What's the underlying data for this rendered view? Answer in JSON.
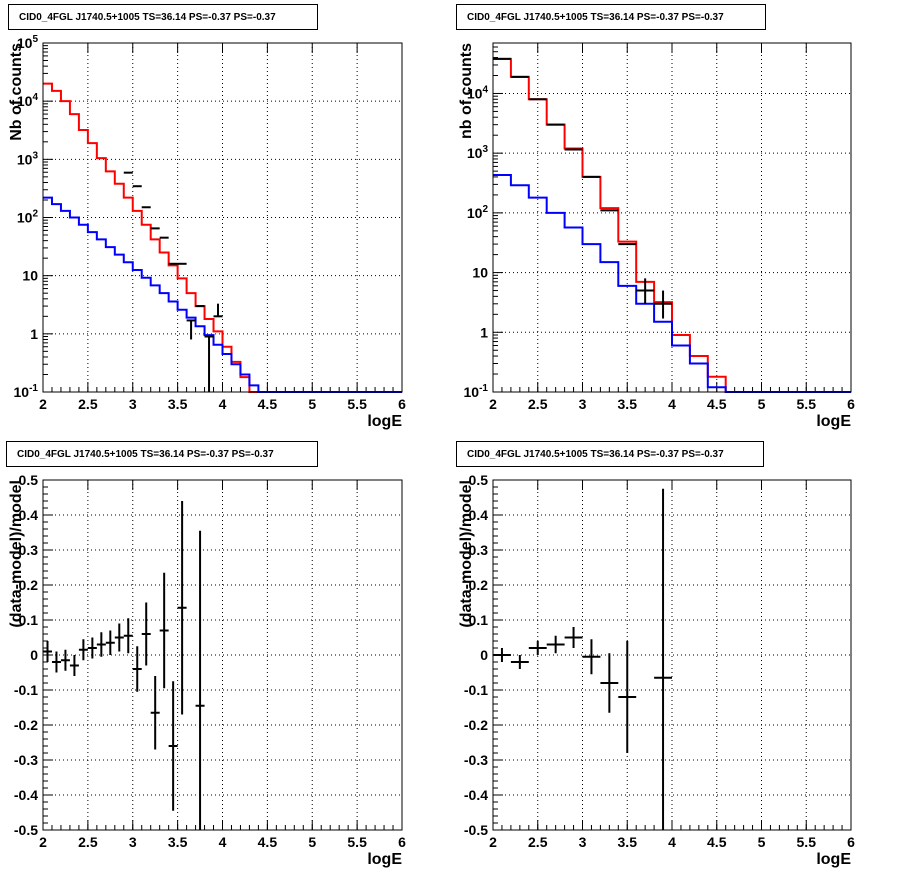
{
  "panels": [
    {
      "title": "CID0_4FGL J1740.5+1005 TS=36.14 PS=-0.37 PS=-0.37",
      "xlabel": "logE",
      "ylabel": "Nb of counts"
    },
    {
      "title": "CID0_4FGL J1740.5+1005 TS=36.14 PS=-0.37 PS=-0.37",
      "xlabel": "logE",
      "ylabel": "nb of counts"
    },
    {
      "title": "CID0_4FGL J1740.5+1005 TS=36.14 PS=-0.37 PS=-0.37",
      "xlabel": "logE",
      "ylabel": "(data-model)/model"
    },
    {
      "title": "CID0_4FGL J1740.5+1005 TS=36.14 PS=-0.37 PS=-0.37",
      "xlabel": "logE",
      "ylabel": "(data-model)/model"
    }
  ],
  "colors": {
    "total_model": "#ff0000",
    "source_model": "#0000ff",
    "data": "#000000",
    "grid": "#000000"
  },
  "chart_data": [
    {
      "type": "histogram",
      "log_y": true,
      "xlim": [
        2,
        6
      ],
      "ylim": [
        0.1,
        100000
      ],
      "xticks": [
        2,
        2.5,
        3,
        3.5,
        4,
        4.5,
        5,
        5.5,
        6
      ],
      "xtick_labels": [
        "2",
        "2.5",
        "3",
        "3.5",
        "4",
        "4.5",
        "5",
        "5.5",
        "6"
      ],
      "yticks": [
        0.1,
        1,
        10,
        100,
        1000,
        10000,
        100000
      ],
      "ytick_labels": [
        "10^-1",
        "1",
        "10",
        "10^2",
        "10^3",
        "10^4",
        "10^5"
      ],
      "grid": true,
      "bin_edges": [
        2.0,
        2.1,
        2.2,
        2.3,
        2.4,
        2.5,
        2.6,
        2.7,
        2.8,
        2.9,
        3.0,
        3.1,
        3.2,
        3.3,
        3.4,
        3.5,
        3.6,
        3.7,
        3.8,
        3.9,
        4.0,
        4.1,
        4.2,
        4.3,
        4.4,
        4.5,
        4.6,
        4.7,
        4.8,
        4.9,
        5.0,
        5.1,
        5.2,
        5.3,
        5.4,
        5.5,
        5.6,
        5.7,
        5.8,
        5.9,
        6.0
      ],
      "series": [
        {
          "role": "total_model",
          "color": "#ff0000",
          "values": [
            20000,
            15000,
            10000,
            6000,
            3200,
            1900,
            1050,
            620,
            380,
            220,
            130,
            75,
            42,
            25,
            15,
            9,
            5,
            3,
            1.8,
            1.1,
            0.6,
            0.33,
            0.18,
            0.1,
            0.1,
            0.1,
            0.1,
            0.1,
            0.1,
            0.1,
            0.1,
            0.1,
            0.1,
            0.1,
            0.1,
            0.1,
            0.1,
            0.1,
            0.1,
            0.1
          ]
        },
        {
          "role": "source_model",
          "color": "#0000ff",
          "values": [
            220,
            170,
            130,
            100,
            75,
            56,
            42,
            31,
            23,
            17,
            12.5,
            9.2,
            6.8,
            5,
            3.6,
            2.6,
            1.9,
            1.35,
            0.95,
            0.65,
            0.45,
            0.3,
            0.2,
            0.13,
            0.1,
            0.1,
            0.1,
            0.1,
            0.1,
            0.1,
            0.1,
            0.1,
            0.1,
            0.1,
            0.1,
            0.1,
            0.1,
            0.1,
            0.1,
            0.1
          ]
        }
      ],
      "data_points": {
        "x": [
          2.95,
          3.05,
          3.15,
          3.25,
          3.35,
          3.45,
          3.55,
          3.65,
          3.75,
          3.85,
          3.95
        ],
        "y": [
          590,
          345,
          150,
          65,
          45,
          16,
          16,
          1.7,
          3,
          0.9,
          2
        ],
        "yerr_low": [
          0,
          0,
          0,
          0,
          0,
          0,
          0,
          0.9,
          0,
          0.8,
          0
        ],
        "yerr_high": [
          0,
          0,
          0,
          0,
          0,
          0,
          0,
          0,
          0,
          0,
          1.3
        ]
      }
    },
    {
      "type": "histogram",
      "log_y": true,
      "xlim": [
        2,
        6
      ],
      "ylim": [
        0.1,
        70000
      ],
      "xticks": [
        2,
        2.5,
        3,
        3.5,
        4,
        4.5,
        5,
        5.5,
        6
      ],
      "xtick_labels": [
        "2",
        "2.5",
        "3",
        "3.5",
        "4",
        "4.5",
        "5",
        "5.5",
        "6"
      ],
      "yticks": [
        0.1,
        1,
        10,
        100,
        1000,
        10000
      ],
      "ytick_labels": [
        "10^-1",
        "1",
        "10",
        "10^2",
        "10^3",
        "10^4"
      ],
      "grid": true,
      "bin_edges": [
        2.0,
        2.2,
        2.4,
        2.6,
        2.8,
        3.0,
        3.2,
        3.4,
        3.6,
        3.8,
        4.0,
        4.2,
        4.4,
        4.6,
        4.8,
        5.0,
        5.2,
        5.4,
        5.6,
        5.8,
        6.0
      ],
      "series": [
        {
          "role": "total_model",
          "color": "#ff0000",
          "values": [
            38000,
            19000,
            8000,
            3000,
            1200,
            400,
            120,
            33,
            7,
            3.2,
            0.9,
            0.4,
            0.18,
            0.1,
            0.1,
            0.1,
            0.1,
            0.1,
            0.1,
            0.1
          ]
        },
        {
          "role": "source_model",
          "color": "#0000ff",
          "values": [
            430,
            290,
            180,
            100,
            57,
            30,
            15,
            6,
            3,
            1.5,
            0.6,
            0.3,
            0.12,
            0.1,
            0.1,
            0.1,
            0.1,
            0.1,
            0.1,
            0.1
          ]
        }
      ],
      "data_points": {
        "x": [
          2.1,
          2.3,
          2.5,
          2.7,
          2.9,
          3.1,
          3.3,
          3.5,
          3.7,
          3.9
        ],
        "y": [
          38000,
          19000,
          8000,
          3000,
          1150,
          400,
          110,
          30,
          5,
          3
        ],
        "yerr_low": [
          0,
          0,
          0,
          0,
          0,
          0,
          0,
          0,
          2,
          1.3
        ],
        "yerr_high": [
          0,
          0,
          0,
          0,
          0,
          0,
          0,
          0,
          3,
          2
        ]
      }
    },
    {
      "type": "scatter",
      "log_y": false,
      "xlim": [
        2,
        6
      ],
      "ylim": [
        -0.5,
        0.5
      ],
      "xticks": [
        2,
        2.5,
        3,
        3.5,
        4,
        4.5,
        5,
        5.5,
        6
      ],
      "xtick_labels": [
        "2",
        "2.5",
        "3",
        "3.5",
        "4",
        "4.5",
        "5",
        "5.5",
        "6"
      ],
      "yticks": [
        -0.5,
        -0.4,
        -0.3,
        -0.2,
        -0.1,
        0,
        0.1,
        0.2,
        0.3,
        0.4,
        0.5
      ],
      "ytick_labels": [
        "-0.5",
        "-0.4",
        "-0.3",
        "-0.2",
        "-0.1",
        "0",
        "0.1",
        "0.2",
        "0.3",
        "0.4",
        "0.5"
      ],
      "grid": true,
      "x_halfwidth": 0.05,
      "points": {
        "x": [
          2.05,
          2.15,
          2.25,
          2.35,
          2.45,
          2.55,
          2.65,
          2.75,
          2.85,
          2.95,
          3.05,
          3.15,
          3.25,
          3.35,
          3.45,
          3.55,
          3.75
        ],
        "y": [
          0.01,
          -0.02,
          -0.015,
          -0.03,
          0.015,
          0.02,
          0.03,
          0.035,
          0.05,
          0.055,
          -0.04,
          0.06,
          -0.165,
          0.07,
          -0.26,
          0.135,
          -0.145
        ],
        "yerr": [
          0.03,
          0.03,
          0.03,
          0.03,
          0.03,
          0.03,
          0.035,
          0.035,
          0.04,
          0.05,
          0.065,
          0.09,
          0.105,
          0.165,
          0.185,
          0.305,
          0.5
        ]
      }
    },
    {
      "type": "scatter",
      "log_y": false,
      "xlim": [
        2,
        6
      ],
      "ylim": [
        -0.5,
        0.5
      ],
      "xticks": [
        2,
        2.5,
        3,
        3.5,
        4,
        4.5,
        5,
        5.5,
        6
      ],
      "xtick_labels": [
        "2",
        "2.5",
        "3",
        "3.5",
        "4",
        "4.5",
        "5",
        "5.5",
        "6"
      ],
      "yticks": [
        -0.5,
        -0.4,
        -0.3,
        -0.2,
        -0.1,
        0,
        0.1,
        0.2,
        0.3,
        0.4,
        0.5
      ],
      "ytick_labels": [
        "-0.5",
        "-0.4",
        "-0.3",
        "-0.2",
        "-0.1",
        "0",
        "0.1",
        "0.2",
        "0.3",
        "0.4",
        "0.5"
      ],
      "grid": true,
      "x_halfwidth": 0.1,
      "points": {
        "x": [
          2.1,
          2.3,
          2.5,
          2.7,
          2.9,
          3.1,
          3.3,
          3.5,
          3.9
        ],
        "y": [
          0.0,
          -0.02,
          0.02,
          0.03,
          0.05,
          -0.005,
          -0.08,
          -0.12,
          -0.065
        ],
        "yerr": [
          0.02,
          0.02,
          0.02,
          0.025,
          0.03,
          0.05,
          0.085,
          0.16,
          0.54
        ]
      }
    }
  ]
}
